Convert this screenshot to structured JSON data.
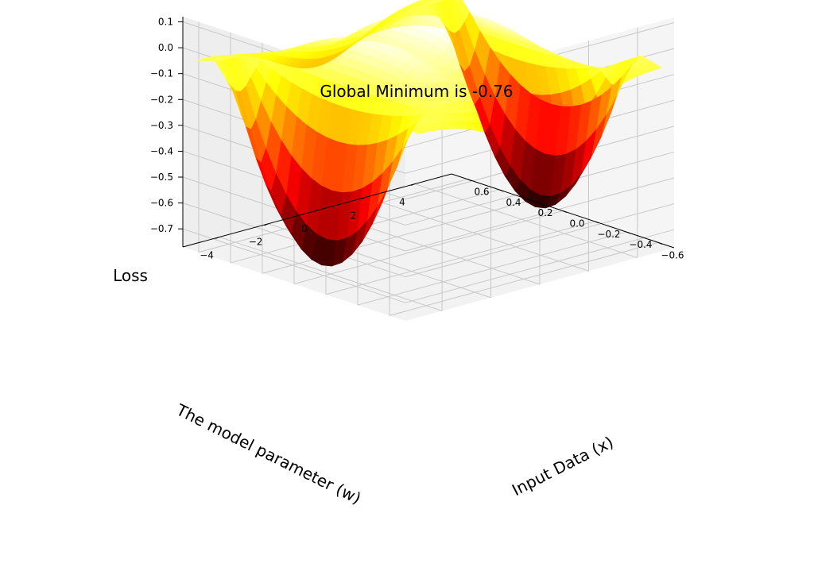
{
  "chart_data": {
    "type": "surface3d",
    "title": "Global Minimum is -0.76",
    "xlabel": "Input Data (x)",
    "ylabel": "The model parameter (w)",
    "zlabel": "Loss",
    "xlim": [
      -5.5,
      5.5
    ],
    "ylim": [
      -0.7,
      0.7
    ],
    "zlim": [
      -0.77,
      0.12
    ],
    "xticks": [
      -4,
      -2,
      0,
      2,
      4
    ],
    "yticks": [
      -0.6,
      -0.4,
      -0.2,
      0.0,
      0.2,
      0.4,
      0.6
    ],
    "zticks": [
      -0.7,
      -0.6,
      -0.5,
      -0.4,
      -0.3,
      -0.2,
      -0.1,
      0.0,
      0.1
    ],
    "xtick_labels": [
      "−4",
      "−2",
      "0",
      "2",
      "4"
    ],
    "ytick_labels": [
      "−0.6",
      "−0.4",
      "−0.2",
      "0.0",
      "0.2",
      "0.4",
      "0.6"
    ],
    "ztick_labels": [
      "−0.7",
      "−0.6",
      "−0.5",
      "−0.4",
      "−0.3",
      "−0.2",
      "−0.1",
      "0.0",
      "0.1"
    ],
    "colormap": "hot",
    "global_minimum": -0.76,
    "grid": true,
    "view": {
      "elevation": 18,
      "azimuth": -135
    }
  }
}
